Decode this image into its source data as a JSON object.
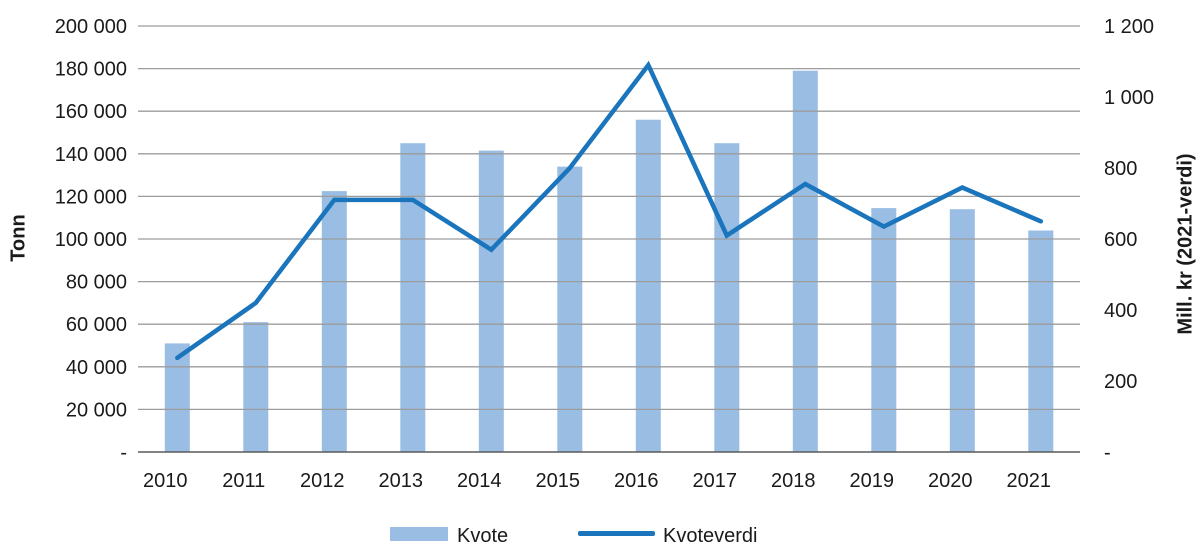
{
  "chart_data": {
    "type": "combo",
    "categories": [
      "2010",
      "2011",
      "2012",
      "2013",
      "2014",
      "2015",
      "2016",
      "2017",
      "2018",
      "2019",
      "2020",
      "2021"
    ],
    "series": [
      {
        "name": "Kvote",
        "type": "bar",
        "axis": "left",
        "color": "#9ABDE4",
        "values": [
          51000,
          61000,
          122500,
          145000,
          141500,
          134000,
          156000,
          145000,
          179000,
          114500,
          114000,
          104000
        ]
      },
      {
        "name": "Kvoteverdi",
        "type": "line",
        "axis": "right",
        "color": "#1B75BC",
        "values": [
          265,
          420,
          710,
          710,
          570,
          800,
          1090,
          610,
          755,
          635,
          745,
          650
        ]
      }
    ],
    "left_axis": {
      "title": "Tonn",
      "min": 0,
      "max": 200000,
      "step": 20000,
      "zero_label": "-",
      "tick_labels": [
        "200 000",
        "180 000",
        "160 000",
        "140 000",
        "120 000",
        "100 000",
        "80 000",
        "60 000",
        "40 000",
        "20 000",
        "-"
      ]
    },
    "right_axis": {
      "title": "Mill. kr (2021-verdi)",
      "min": 0,
      "max": 1200,
      "step": 200,
      "zero_label": "-",
      "tick_labels": [
        "1 200",
        "1 000",
        "800",
        "600",
        "400",
        "200",
        "-"
      ]
    },
    "legend": {
      "items": [
        "Kvote",
        "Kvoteverdi"
      ],
      "position": "bottom"
    },
    "grid": true,
    "colors": {
      "gridline": "#9C9C9C",
      "axis_line": "#5A5A5A",
      "text": "#1A1A1A"
    }
  }
}
